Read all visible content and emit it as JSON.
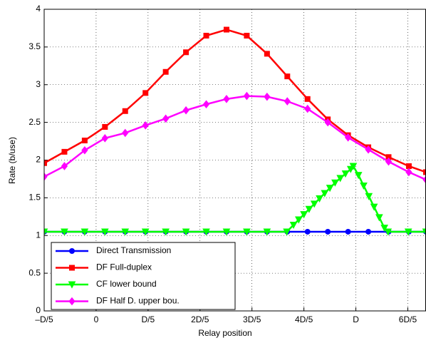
{
  "chart_data": {
    "type": "line",
    "xlabel": "Relay position",
    "ylabel": "Rate (b/use)",
    "xlim": [
      -1,
      6.35
    ],
    "ylim": [
      0,
      4
    ],
    "xticks": [
      {
        "value": -1,
        "label": "–D/5"
      },
      0,
      {
        "value": 1,
        "label": "D/5"
      },
      {
        "value": 2,
        "label": "2D/5"
      },
      {
        "value": 3,
        "label": "3D/5"
      },
      {
        "value": 4,
        "label": "4D/5"
      },
      {
        "value": 5,
        "label": "D"
      },
      {
        "value": 6,
        "label": "6D/5"
      }
    ],
    "yticks": [
      0,
      0.5,
      1,
      1.5,
      2,
      2.5,
      3,
      3.5,
      4
    ],
    "grid": true,
    "legend": "lower left",
    "series": [
      {
        "name": "Direct Transmission",
        "color": "#0000ff",
        "marker": "circle",
        "x": [
          -1,
          -0.61,
          -0.22,
          0.17,
          0.56,
          0.95,
          1.34,
          1.73,
          2.12,
          2.51,
          2.9,
          3.29,
          3.68,
          4.07,
          4.46,
          4.85,
          5.24,
          5.63,
          6.02,
          6.35
        ],
        "values": [
          1.05,
          1.05,
          1.05,
          1.05,
          1.05,
          1.05,
          1.05,
          1.05,
          1.05,
          1.05,
          1.05,
          1.05,
          1.05,
          1.05,
          1.05,
          1.05,
          1.05,
          1.05,
          1.05,
          1.05
        ]
      },
      {
        "name": "DF Full-duplex",
        "color": "#ff0000",
        "marker": "square",
        "x": [
          -1,
          -0.61,
          -0.22,
          0.17,
          0.56,
          0.95,
          1.34,
          1.73,
          2.12,
          2.51,
          2.9,
          3.29,
          3.68,
          4.07,
          4.46,
          4.85,
          5.24,
          5.63,
          6.02,
          6.35
        ],
        "values": [
          1.96,
          2.11,
          2.26,
          2.44,
          2.65,
          2.89,
          3.17,
          3.43,
          3.65,
          3.73,
          3.65,
          3.41,
          3.11,
          2.81,
          2.54,
          2.33,
          2.17,
          2.04,
          1.92,
          1.84
        ]
      },
      {
        "name": "CF lower bound",
        "color": "#00ff00",
        "marker": "triangle-down",
        "x": [
          -1,
          -0.61,
          -0.22,
          0.17,
          0.56,
          0.95,
          1.34,
          1.73,
          2.12,
          2.51,
          2.9,
          3.29,
          3.67,
          3.8,
          3.9,
          4.0,
          4.1,
          4.2,
          4.3,
          4.4,
          4.5,
          4.6,
          4.7,
          4.8,
          4.9,
          4.95,
          5.05,
          5.15,
          5.25,
          5.35,
          5.45,
          5.55,
          5.62,
          6.01,
          6.35
        ],
        "values": [
          1.05,
          1.05,
          1.05,
          1.05,
          1.05,
          1.05,
          1.05,
          1.05,
          1.05,
          1.05,
          1.05,
          1.05,
          1.05,
          1.14,
          1.21,
          1.28,
          1.35,
          1.42,
          1.49,
          1.56,
          1.63,
          1.7,
          1.76,
          1.82,
          1.88,
          1.92,
          1.8,
          1.66,
          1.52,
          1.38,
          1.24,
          1.1,
          1.05,
          1.05,
          1.05
        ]
      },
      {
        "name": "DF Half D. upper bou.",
        "color": "#ff00ff",
        "marker": "diamond",
        "x": [
          -1,
          -0.61,
          -0.22,
          0.17,
          0.56,
          0.95,
          1.34,
          1.73,
          2.12,
          2.51,
          2.9,
          3.29,
          3.68,
          4.07,
          4.46,
          4.85,
          5.24,
          5.63,
          6.02,
          6.35
        ],
        "values": [
          1.78,
          1.92,
          2.13,
          2.29,
          2.36,
          2.46,
          2.55,
          2.66,
          2.74,
          2.81,
          2.85,
          2.84,
          2.78,
          2.68,
          2.5,
          2.3,
          2.14,
          1.98,
          1.84,
          1.74
        ]
      }
    ]
  }
}
